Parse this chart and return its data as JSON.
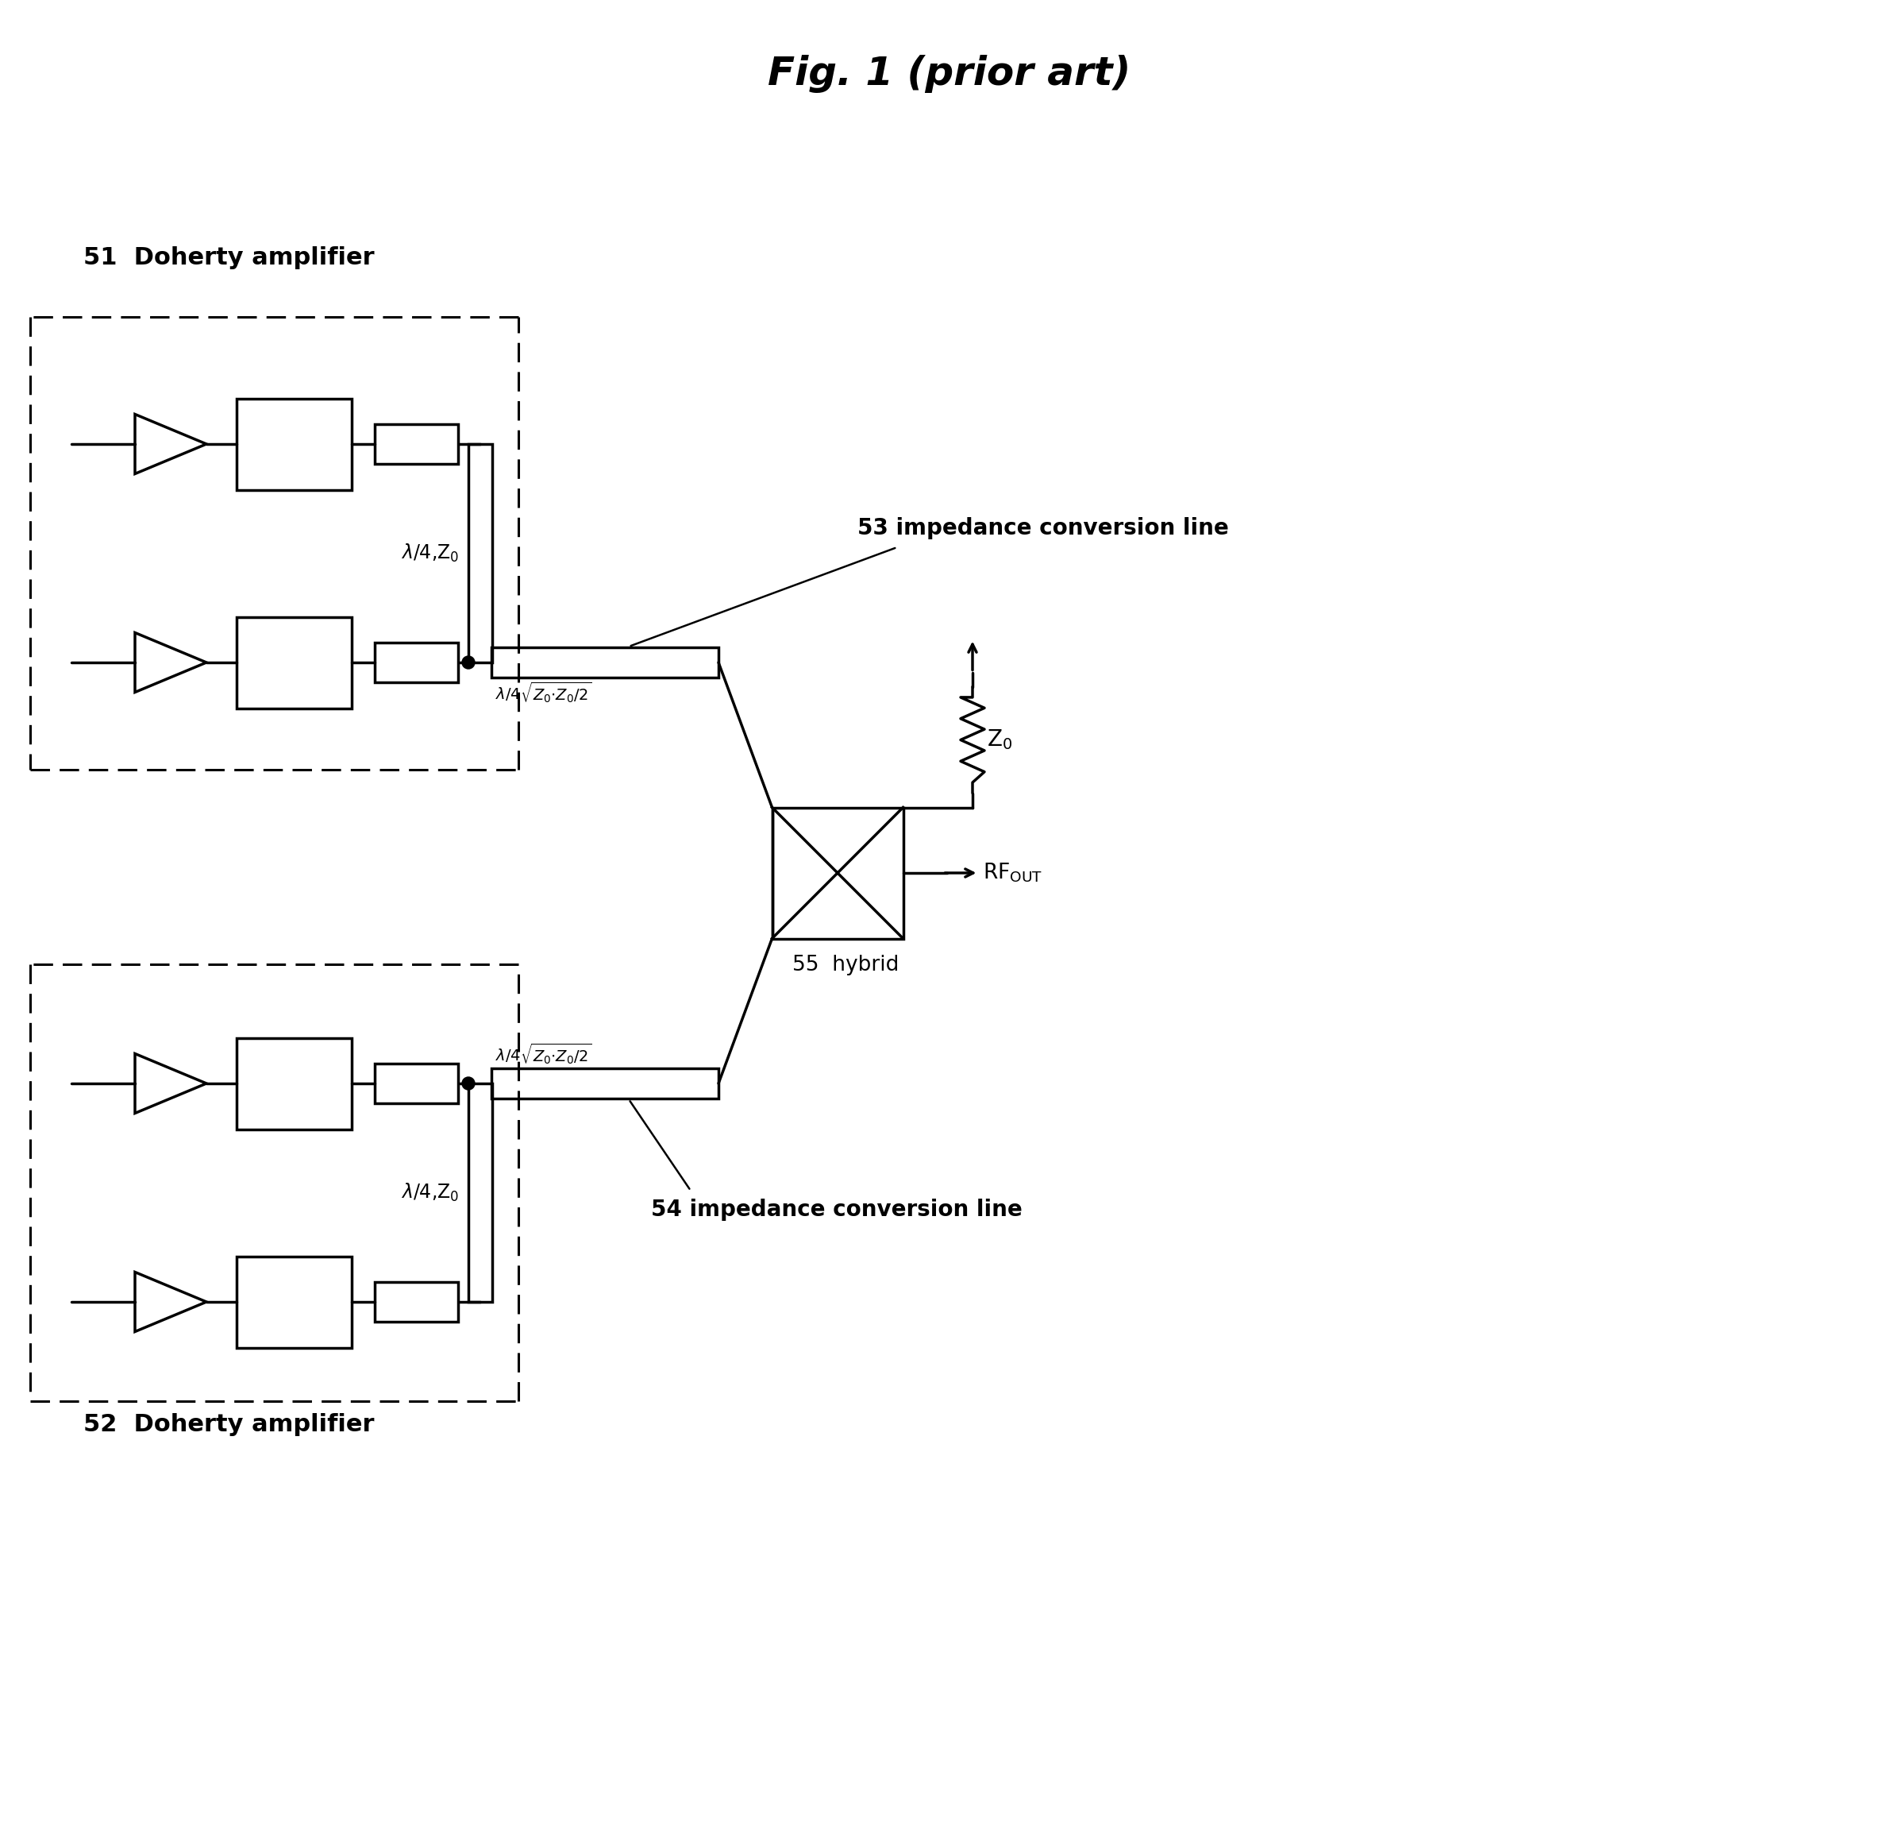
{
  "title": "Fig. 1 (prior art)",
  "title_fontsize": 36,
  "bg_color": "#ffffff",
  "line_color": "#000000",
  "lw": 2.5,
  "dashed_lw": 2.2,
  "label_51": "51  Doherty amplifier",
  "label_52": "52  Doherty amplifier",
  "label_53": "53 impedance conversion line",
  "label_54": "54 impedance conversion line",
  "label_55": "55  hybrid",
  "label_lambda_z0": "λ/4,Z0",
  "label_zo": "Z0",
  "label_rfout": "RFOUT"
}
